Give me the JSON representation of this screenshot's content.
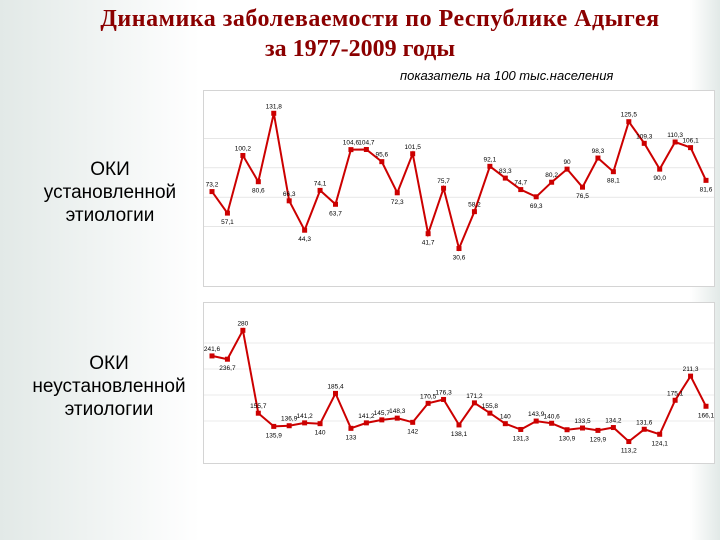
{
  "header": {
    "title_line1": "Динамика заболеваемости по Республике Адыгея",
    "title_line2": "за 1977-2009 годы",
    "subtitle": "показатель на 100 тыс.населения"
  },
  "labels": {
    "chart1": "ОКИ\nустановленной\nэтиологии",
    "chart2": "ОКИ\nнеустановленной\nэтиологии"
  },
  "colors": {
    "line": "#cc0000",
    "marker": "#cc0000",
    "title": "#8b0000",
    "grid": "#d8d8d8"
  },
  "chart_data": [
    {
      "type": "line",
      "title": "",
      "xlabel": "",
      "ylabel": "",
      "ylim": [
        25,
        135
      ],
      "grid": true,
      "legend": "none",
      "series": [
        {
          "values": [
            73.2,
            57.1,
            100.2,
            80.6,
            131.8,
            66.3,
            44.3,
            74.1,
            63.7,
            104.6,
            104.7,
            95.6,
            72.3,
            101.5,
            41.7,
            75.7,
            30.6,
            58.2,
            92.1,
            83.3,
            74.7,
            69.3,
            80.2,
            90,
            76.5,
            98.3,
            88.1,
            125.5,
            109.3,
            90,
            110.3,
            106.1,
            81.6
          ],
          "labels": [
            "73,2",
            "57,1",
            "100,2",
            "80,6",
            "131,8",
            "66,3",
            "44,3",
            "74,1",
            "63,7",
            "104,6",
            "104,7",
            "95,6",
            "72,3",
            "101,5",
            "41,7",
            "75,7",
            "30,6",
            "58,2",
            "92,1",
            "83,3",
            "74,7",
            "69,3",
            "80,2",
            "90",
            "76,5",
            "98,3",
            "88,1",
            "125,5",
            "109,3",
            "90,0",
            "110,3",
            "106,1",
            "81,6"
          ]
        }
      ]
    },
    {
      "type": "line",
      "title": "",
      "xlabel": "",
      "ylabel": "",
      "ylim": [
        105,
        300
      ],
      "grid": true,
      "legend": "none",
      "series": [
        {
          "values": [
            241.6,
            236.7,
            280,
            155.7,
            135.9,
            136.9,
            141.2,
            140,
            185.4,
            133,
            141.2,
            145.7,
            148.3,
            142,
            170.5,
            176.3,
            138.1,
            171.2,
            155.8,
            140,
            131.3,
            143.9,
            140.6,
            130.9,
            133.5,
            129.9,
            134.2,
            113.2,
            131.6,
            124.1,
            175.1,
            211.3,
            166.1
          ],
          "labels": [
            "241,6",
            "236,7",
            "280",
            "155,7",
            "135,9",
            "136,9",
            "141,2",
            "140",
            "185,4",
            "133",
            "141,2",
            "145,7",
            "148,3",
            "142",
            "170,5",
            "176,3",
            "138,1",
            "171,2",
            "155,8",
            "140",
            "131,3",
            "143,9",
            "140,6",
            "130,9",
            "133,5",
            "129,9",
            "134,2",
            "113,2",
            "131,6",
            "124,1",
            "175,1",
            "211,3",
            "166,1"
          ]
        }
      ]
    }
  ]
}
